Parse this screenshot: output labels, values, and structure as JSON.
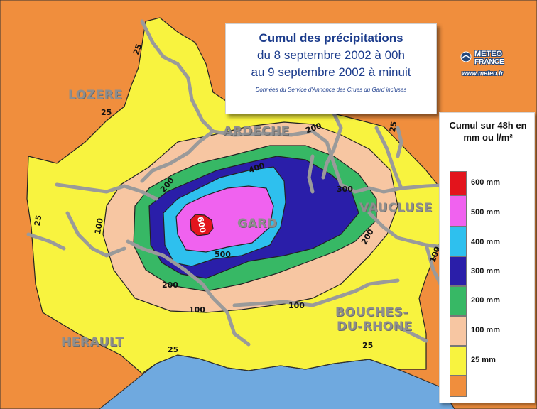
{
  "title": {
    "line1": "Cumul des précipitations",
    "line2": "du 8 septembre 2002 à 00h",
    "line3": "au 9 septembre 2002 à minuit",
    "note": "Données du Service d'Annonce des Crues du Gard incluses"
  },
  "brand": {
    "name_line1": "METEO",
    "name_line2": "FRANCE",
    "url": "www.meteo.fr"
  },
  "legend": {
    "title": "Cumul sur 48h en mm ou l/m²",
    "classes": [
      {
        "label": "600 mm",
        "color": "#e3141c"
      },
      {
        "label": "500 mm",
        "color": "#f062ef"
      },
      {
        "label": "400 mm",
        "color": "#2ec0ee"
      },
      {
        "label": "300 mm",
        "color": "#2a1ea9"
      },
      {
        "label": "200 mm",
        "color": "#37b865"
      },
      {
        "label": "100 mm",
        "color": "#f7c6a2"
      },
      {
        "label": "25 mm",
        "color": "#f8f33f"
      },
      {
        "label": "",
        "color": "#f08e3d"
      }
    ]
  },
  "departments": [
    "LOZERE",
    "ARDECHE",
    "GARD",
    "VAUCLUSE",
    "BOUCHES-",
    "DU-RHONE",
    "HERAULT"
  ],
  "isohyet_labels": [
    "25",
    "25",
    "25",
    "25",
    "25",
    "25",
    "100",
    "100",
    "100",
    "100",
    "200",
    "200",
    "200",
    "200",
    "300",
    "400",
    "500",
    "600"
  ],
  "colors": {
    "sea": "#6fa9df",
    "under_25": "#f08e3d",
    "band_25": "#f8f33f",
    "band_100": "#f7c6a2",
    "band_200": "#37b865",
    "band_300": "#2a1ea9",
    "band_400": "#2ec0ee",
    "band_500": "#f062ef",
    "band_600": "#e3141c",
    "borders": "#9a9a9a"
  }
}
